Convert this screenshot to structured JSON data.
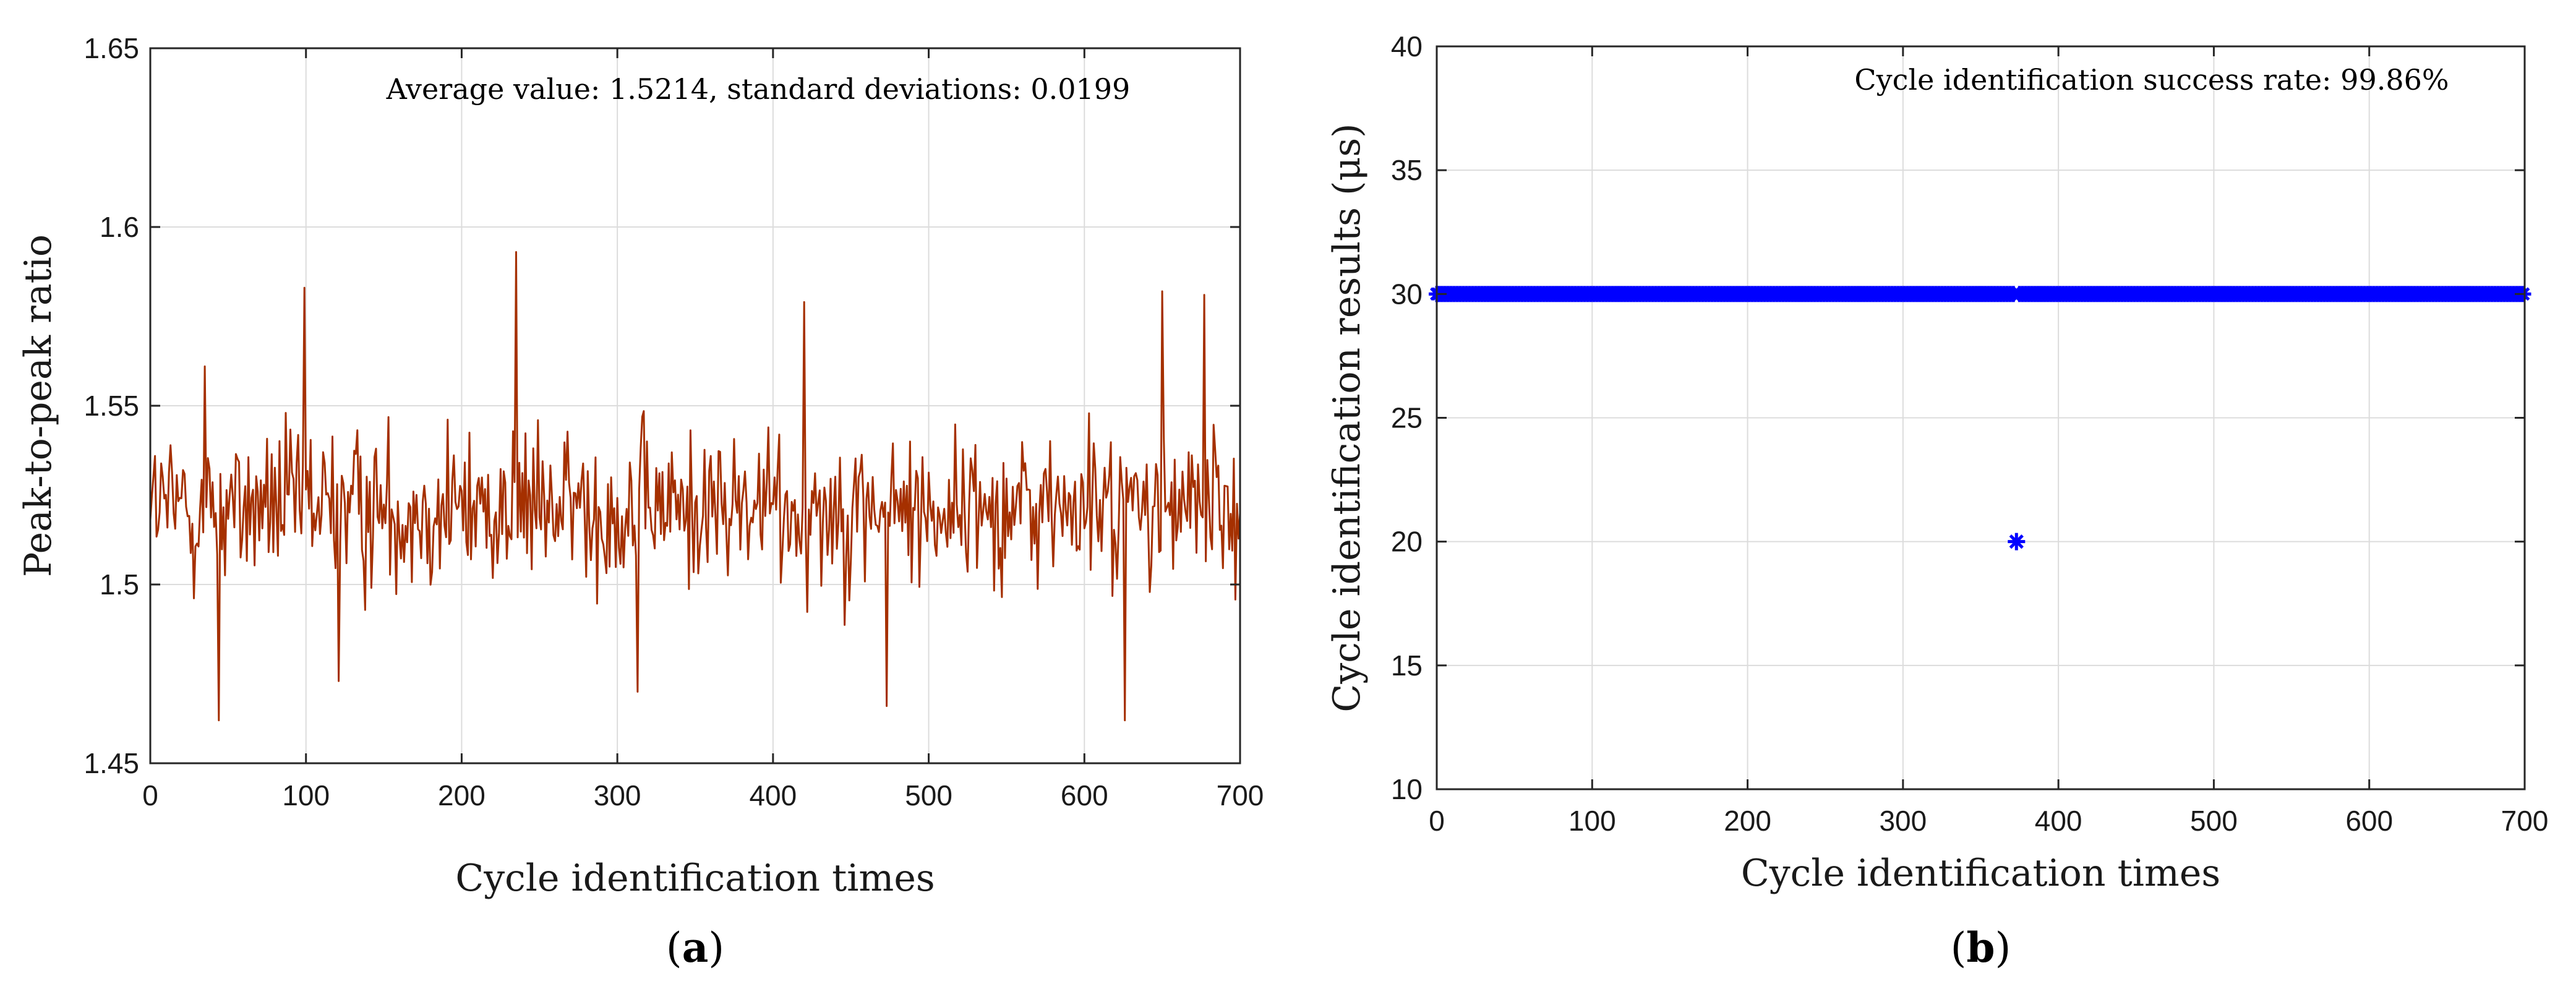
{
  "colors": {
    "series_a": "#a53000",
    "series_b": "#0000ff",
    "grid": "#dcdcdc",
    "axis": "#262626"
  },
  "chart_data": [
    {
      "type": "line",
      "panel_label": "a",
      "title": "",
      "xlabel": "Cycle identification times",
      "ylabel": "Peak-to-peak ratio",
      "xlim": [
        0,
        700
      ],
      "ylim": [
        1.45,
        1.65
      ],
      "xticks": [
        "0",
        "100",
        "200",
        "300",
        "400",
        "500",
        "600",
        "700"
      ],
      "yticks": [
        "1.45",
        "1.5",
        "1.55",
        "1.6",
        "1.65"
      ],
      "grid": true,
      "annotation": "Average value: 1.5214, standard deviations: 0.0199",
      "series": [
        {
          "name": "Peak-to-peak ratio",
          "mean": 1.5214,
          "std": 0.0199,
          "count": 700,
          "notable_points": [
            {
              "x": 0,
              "y": 1.518
            },
            {
              "x": 35,
              "y": 1.561
            },
            {
              "x": 44,
              "y": 1.462
            },
            {
              "x": 99,
              "y": 1.583
            },
            {
              "x": 121,
              "y": 1.473
            },
            {
              "x": 235,
              "y": 1.593
            },
            {
              "x": 313,
              "y": 1.47
            },
            {
              "x": 420,
              "y": 1.579
            },
            {
              "x": 473,
              "y": 1.466
            },
            {
              "x": 626,
              "y": 1.462
            },
            {
              "x": 650,
              "y": 1.582
            },
            {
              "x": 677,
              "y": 1.581
            },
            {
              "x": 700,
              "y": 1.52
            }
          ]
        }
      ]
    },
    {
      "type": "scatter",
      "panel_label": "b",
      "title": "",
      "xlabel": "Cycle identification times",
      "ylabel": "Cycle identification results (μs)",
      "xlim": [
        0,
        700
      ],
      "ylim": [
        10,
        40
      ],
      "xticks": [
        "0",
        "100",
        "200",
        "300",
        "400",
        "500",
        "600",
        "700"
      ],
      "yticks": [
        "10",
        "15",
        "20",
        "25",
        "30",
        "35",
        "40"
      ],
      "grid": true,
      "annotation": "Cycle identification success rate: 99.86%",
      "marker": "*",
      "series": [
        {
          "name": "Cycle identification results",
          "x_range": [
            1,
            700
          ],
          "value": 30,
          "outliers": [
            {
              "x": 373,
              "y": 20
            }
          ]
        }
      ]
    }
  ]
}
